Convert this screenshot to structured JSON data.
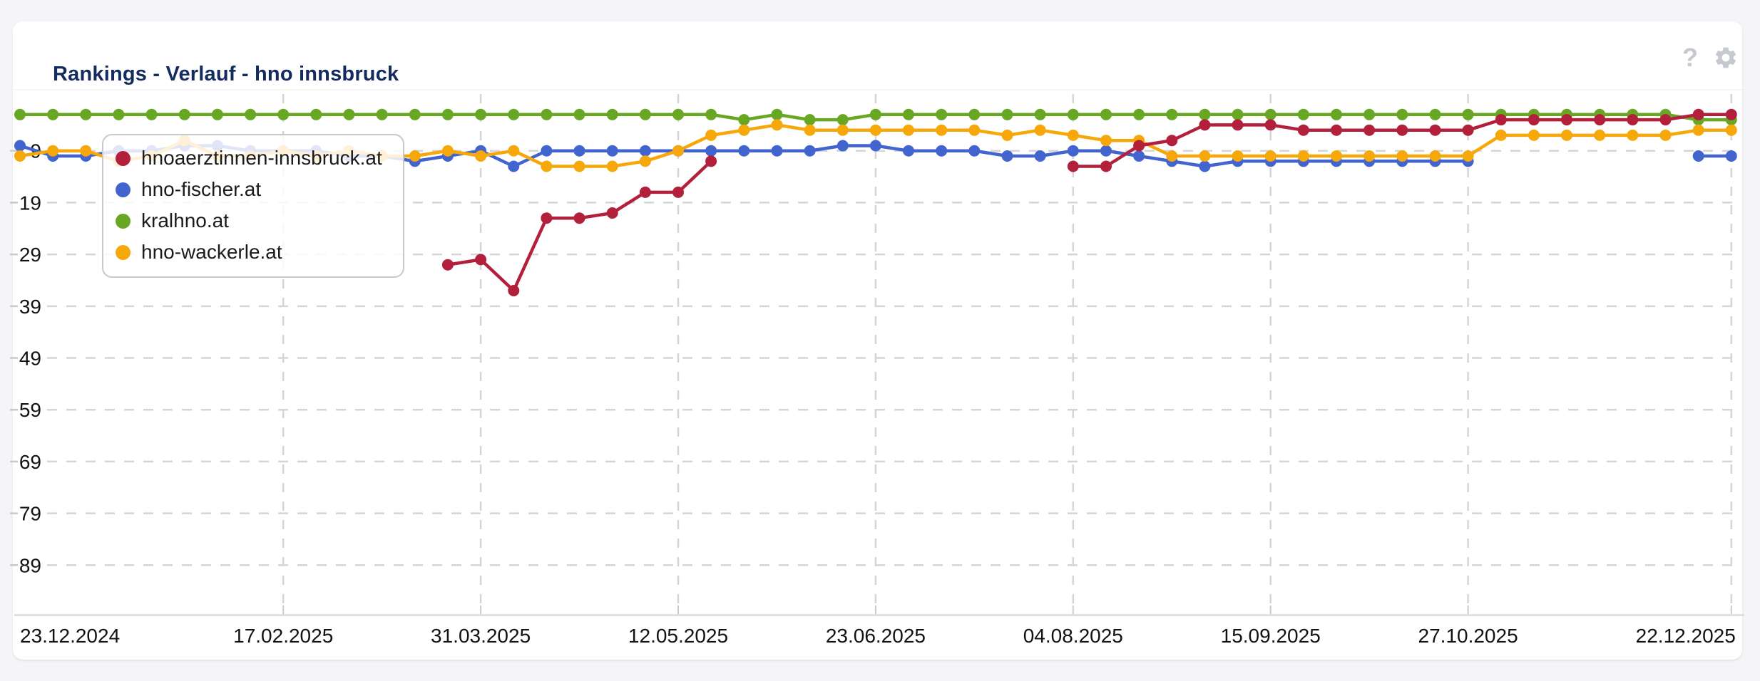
{
  "theme": {
    "page_background": "#f5f5f7",
    "card_background": "#ffffff",
    "title_color": "#132b5e",
    "grid_color": "#d5d5d9",
    "axis_line_color": "#d9d9dc",
    "axis_text_color": "#121212",
    "icon_color": "#c6c9cf"
  },
  "header": {
    "title": "Rankings - Verlauf - hno innsbruck",
    "help_glyph": "?"
  },
  "legend": {
    "items": [
      {
        "label": "hnoaerztinnen-innsbruck.at",
        "color": "#b3203c"
      },
      {
        "label": "hno-fischer.at",
        "color": "#4164cf"
      },
      {
        "label": "kralhno.at",
        "color": "#67a723"
      },
      {
        "label": "hno-wackerle.at",
        "color": "#f6a70a"
      }
    ]
  },
  "chart_data": {
    "type": "line",
    "title": "Rankings - Verlauf - hno innsbruck",
    "xlabel": "",
    "ylabel": "",
    "y_axis_inverted": true,
    "y_tick_labels": [
      9,
      19,
      29,
      39,
      49,
      59,
      69,
      79,
      89
    ],
    "grid": "dashed",
    "legend_position": "top-left-overlay",
    "point_interval": "weekly",
    "x_ticks": [
      {
        "label": "23.12.2024",
        "week_index": 0
      },
      {
        "label": "17.02.2025",
        "week_index": 8
      },
      {
        "label": "31.03.2025",
        "week_index": 14
      },
      {
        "label": "12.05.2025",
        "week_index": 20
      },
      {
        "label": "23.06.2025",
        "week_index": 26
      },
      {
        "label": "04.08.2025",
        "week_index": 32
      },
      {
        "label": "15.09.2025",
        "week_index": 38
      },
      {
        "label": "27.10.2025",
        "week_index": 44
      },
      {
        "label": "22.12.2025",
        "week_index": 52
      }
    ],
    "weeks": [
      "23.12.2024",
      "30.12.2024",
      "06.01.2025",
      "13.01.2025",
      "20.01.2025",
      "27.01.2025",
      "03.02.2025",
      "10.02.2025",
      "17.02.2025",
      "24.02.2025",
      "03.03.2025",
      "10.03.2025",
      "17.03.2025",
      "24.03.2025",
      "31.03.2025",
      "07.04.2025",
      "14.04.2025",
      "21.04.2025",
      "28.04.2025",
      "05.05.2025",
      "12.05.2025",
      "19.05.2025",
      "26.05.2025",
      "02.06.2025",
      "09.06.2025",
      "16.06.2025",
      "23.06.2025",
      "30.06.2025",
      "07.07.2025",
      "14.07.2025",
      "21.07.2025",
      "28.07.2025",
      "04.08.2025",
      "11.08.2025",
      "18.08.2025",
      "25.08.2025",
      "01.09.2025",
      "08.09.2025",
      "15.09.2025",
      "22.09.2025",
      "29.09.2025",
      "06.10.2025",
      "13.10.2025",
      "20.10.2025",
      "27.10.2025",
      "03.11.2025",
      "10.11.2025",
      "17.11.2025",
      "24.11.2025",
      "01.12.2025",
      "08.12.2025",
      "15.12.2025",
      "22.12.2025"
    ],
    "series": [
      {
        "name": "hnoaerztinnen-innsbruck.at",
        "color": "#b3203c",
        "values": [
          null,
          null,
          null,
          null,
          null,
          null,
          null,
          null,
          null,
          null,
          null,
          null,
          null,
          31,
          30,
          36,
          22,
          22,
          21,
          17,
          17,
          11,
          null,
          null,
          null,
          null,
          null,
          null,
          null,
          null,
          null,
          null,
          12,
          12,
          8,
          7,
          4,
          4,
          4,
          5,
          5,
          5,
          5,
          5,
          5,
          3,
          3,
          3,
          3,
          3,
          3,
          2,
          2
        ]
      },
      {
        "name": "hno-fischer.at",
        "color": "#4164cf",
        "values": [
          8,
          10,
          10,
          9,
          9,
          8,
          8,
          9,
          9,
          9,
          10,
          10,
          11,
          10,
          9,
          12,
          9,
          9,
          9,
          9,
          9,
          9,
          9,
          9,
          9,
          8,
          8,
          9,
          9,
          9,
          10,
          10,
          9,
          9,
          10,
          11,
          12,
          11,
          11,
          11,
          11,
          11,
          11,
          11,
          11,
          null,
          null,
          null,
          null,
          null,
          null,
          10,
          10
        ]
      },
      {
        "name": "kralhno.at",
        "color": "#67a723",
        "values": [
          2,
          2,
          2,
          2,
          2,
          2,
          2,
          2,
          2,
          2,
          2,
          2,
          2,
          2,
          2,
          2,
          2,
          2,
          2,
          2,
          2,
          2,
          3,
          2,
          3,
          3,
          2,
          2,
          2,
          2,
          2,
          2,
          2,
          2,
          2,
          2,
          2,
          2,
          2,
          2,
          2,
          2,
          2,
          2,
          2,
          2,
          2,
          2,
          2,
          2,
          2,
          3,
          3
        ]
      },
      {
        "name": "hno-wackerle.at",
        "color": "#f6a70a",
        "values": [
          10,
          9,
          9,
          11,
          10,
          7,
          10,
          10,
          9,
          10,
          9,
          10,
          10,
          9,
          10,
          9,
          12,
          12,
          12,
          11,
          9,
          6,
          5,
          4,
          5,
          5,
          5,
          5,
          5,
          5,
          6,
          5,
          6,
          7,
          7,
          10,
          10,
          10,
          10,
          10,
          10,
          10,
          10,
          10,
          10,
          6,
          6,
          6,
          6,
          6,
          6,
          5,
          5
        ]
      }
    ]
  }
}
